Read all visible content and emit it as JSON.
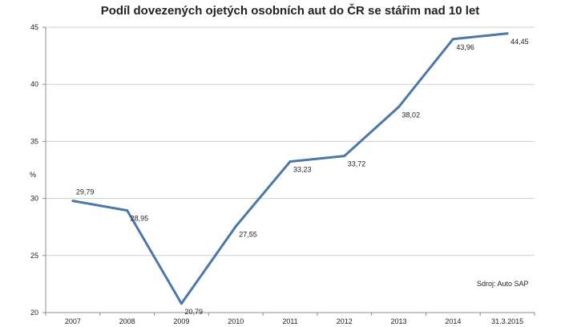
{
  "chart_data": {
    "type": "line",
    "title": "Podíl dovezených ojetých osobních aut do ČR se stáři­m nad 10 let",
    "ylabel": "%",
    "xlabel": "",
    "categories": [
      "2007",
      "2008",
      "2009",
      "2010",
      "2011",
      "2012",
      "2013",
      "2014",
      "31.3.2015"
    ],
    "series": [
      {
        "values": [
          29.79,
          28.95,
          20.79,
          27.55,
          33.23,
          33.72,
          38.02,
          43.96,
          44.45
        ]
      }
    ],
    "data_labels": [
      "29,79",
      "28,95",
      "20,79",
      "27,55",
      "33,23",
      "33,72",
      "38,02",
      "43,96",
      "44,45"
    ],
    "ylim": [
      20,
      45
    ],
    "yticks": [
      20,
      25,
      30,
      35,
      40,
      45
    ],
    "grid": true,
    "source": "Sdroj: Auto SAP",
    "colors": {
      "line": "#4a78a8",
      "grid": "#cfcfcf",
      "axis": "#8c8c8c"
    }
  }
}
